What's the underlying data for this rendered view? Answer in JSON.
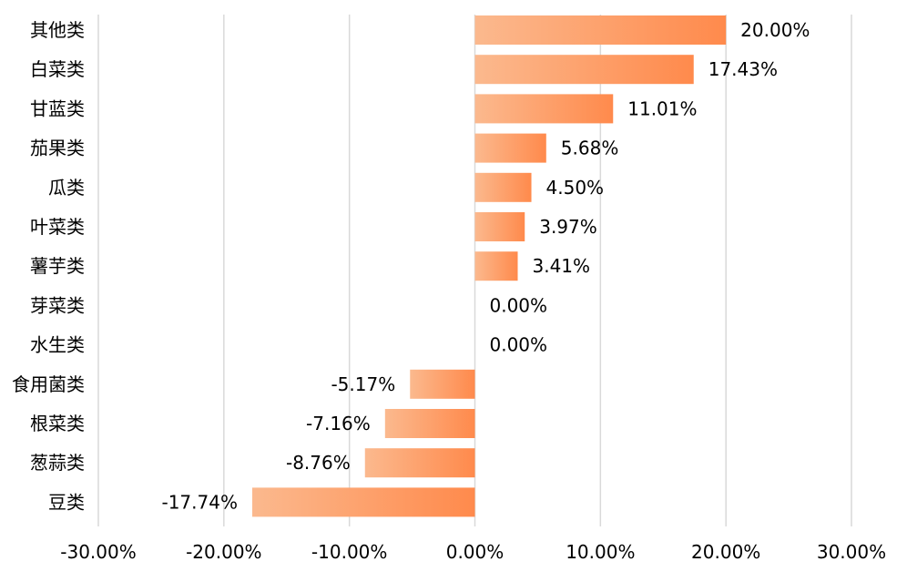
{
  "chart_data": {
    "type": "bar",
    "orientation": "horizontal",
    "categories": [
      "其他类",
      "白菜类",
      "甘蓝类",
      "茄果类",
      "瓜类",
      "叶菜类",
      "薯芋类",
      "芽菜类",
      "水生类",
      "食用菌类",
      "根菜类",
      "葱蒜类",
      "豆类"
    ],
    "values": [
      20.0,
      17.43,
      11.01,
      5.68,
      4.5,
      3.97,
      3.41,
      0.0,
      0.0,
      -5.17,
      -7.16,
      -8.76,
      -17.74
    ],
    "value_labels": [
      "20.00%",
      "17.43%",
      "11.01%",
      "5.68%",
      "4.50%",
      "3.97%",
      "3.41%",
      "0.00%",
      "0.00%",
      "-5.17%",
      "-7.16%",
      "-8.76%",
      "-17.74%"
    ],
    "xlim": [
      -30,
      30
    ],
    "xticks": [
      -30,
      -20,
      -10,
      0,
      10,
      20,
      30
    ],
    "xtick_labels": [
      "-30.00%",
      "-20.00%",
      "-10.00%",
      "0.00%",
      "10.00%",
      "20.00%",
      "30.00%"
    ],
    "grid": "vertical",
    "legend": "none",
    "colors": {
      "bar_light": "#FBB98E",
      "bar_dark": "#FF8A4C",
      "grid": "#D9D9D9"
    }
  }
}
